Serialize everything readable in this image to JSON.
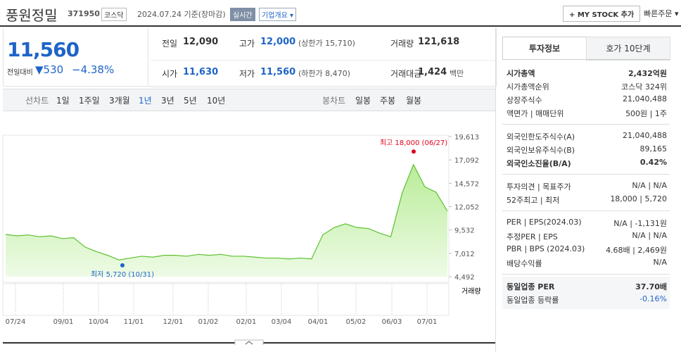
{
  "header": {
    "name": "풍원정밀",
    "code": "371950",
    "market": "코스닥",
    "date": "2024.07.24 기준(장마감)",
    "realtime": "실시간",
    "overview": "기업개요",
    "mystock": "+ MY STOCK 추가",
    "quick": "빠른주문"
  },
  "price": {
    "current": "11,560",
    "change_label": "전일대비",
    "change": "530",
    "rate": "−4.38%"
  },
  "summary": [
    [
      {
        "label": "전일",
        "value": "12,090"
      },
      {
        "label": "고가",
        "value": "12,000",
        "note": "(상한가 15,710)"
      },
      {
        "label": "거래량",
        "value": "121,618"
      }
    ],
    [
      {
        "label": "시가",
        "value": "11,630"
      },
      {
        "label": "저가",
        "value": "11,560",
        "note": "(하한가 8,470)"
      },
      {
        "label": "거래대금",
        "value": "1,424",
        "note": "백만"
      }
    ]
  ],
  "tabs": {
    "line": "선차트",
    "line_periods": [
      "1일",
      "1주일",
      "3개월",
      "1년",
      "3년",
      "5년",
      "10년"
    ],
    "selected": "1년",
    "candle": "봉차트",
    "candle_periods": [
      "일봉",
      "주봉",
      "월봉"
    ]
  },
  "chart_data": {
    "type": "line",
    "color": "#5cc12e",
    "volume_label": "거래량",
    "values": [
      9050,
      8900,
      9000,
      8800,
      8900,
      8600,
      8700,
      7700,
      7200,
      6800,
      6300,
      6500,
      6700,
      6600,
      6800,
      6800,
      6700,
      6900,
      6800,
      6900,
      6700,
      6700,
      6600,
      6500,
      6500,
      6400,
      6500,
      6400,
      9000,
      9800,
      10200,
      9800,
      9700,
      9200,
      8800,
      13500,
      16600,
      14200,
      13600,
      11560
    ],
    "ylim": [
      4492,
      19613
    ],
    "yticks": [
      {
        "value": 4492,
        "label": "4,492"
      },
      {
        "value": 7012,
        "label": "7,012"
      },
      {
        "value": 9532,
        "label": "9,532"
      },
      {
        "value": 12052,
        "label": "12,052"
      },
      {
        "value": 14572,
        "label": "14,572"
      },
      {
        "value": 17092,
        "label": "17,092"
      },
      {
        "value": 19613,
        "label": "19,613"
      }
    ],
    "xtick_labels": [
      "07/24",
      "09/01",
      "10/04",
      "11/01",
      "12/01",
      "01/02",
      "02/01",
      "03/04",
      "04/01",
      "05/02",
      "06/03",
      "07/01"
    ],
    "high": {
      "label": "최고 18,000 (06/27)",
      "value": 18000
    },
    "low": {
      "label": "최저 5,720 (10/31)",
      "value": 5720
    }
  },
  "side": {
    "tabs": [
      "투자정보",
      "호가 10단계"
    ],
    "sections": [
      [
        [
          "시가총액",
          "2,432억원"
        ],
        [
          "시가총액순위",
          "코스닥 324위"
        ],
        [
          "상장주식수",
          "21,040,488"
        ],
        [
          "액면가 | 매매단위",
          "500원 | 1주"
        ]
      ],
      [
        [
          "외국인한도주식수(A)",
          "21,040,488"
        ],
        [
          "외국인보유주식수(B)",
          "89,165"
        ],
        [
          "외국인소진율(B/A)",
          "0.42%"
        ]
      ],
      [
        [
          "투자의견 | 목표주가",
          "N/A | N/A"
        ],
        [
          "52주최고 | 최저",
          "18,000 | 5,720"
        ]
      ],
      [
        [
          "PER | EPS(2024.03)",
          "N/A | -1,131원"
        ],
        [
          "추정PER | EPS",
          "N/A | N/A"
        ],
        [
          "PBR | BPS (2024.03)",
          "4.68배 | 2,469원"
        ],
        [
          "배당수익률",
          "N/A"
        ]
      ],
      [
        [
          "동일업종 PER",
          "37.70배"
        ],
        [
          "동일업종 등락률",
          "-0.16%"
        ]
      ]
    ]
  }
}
